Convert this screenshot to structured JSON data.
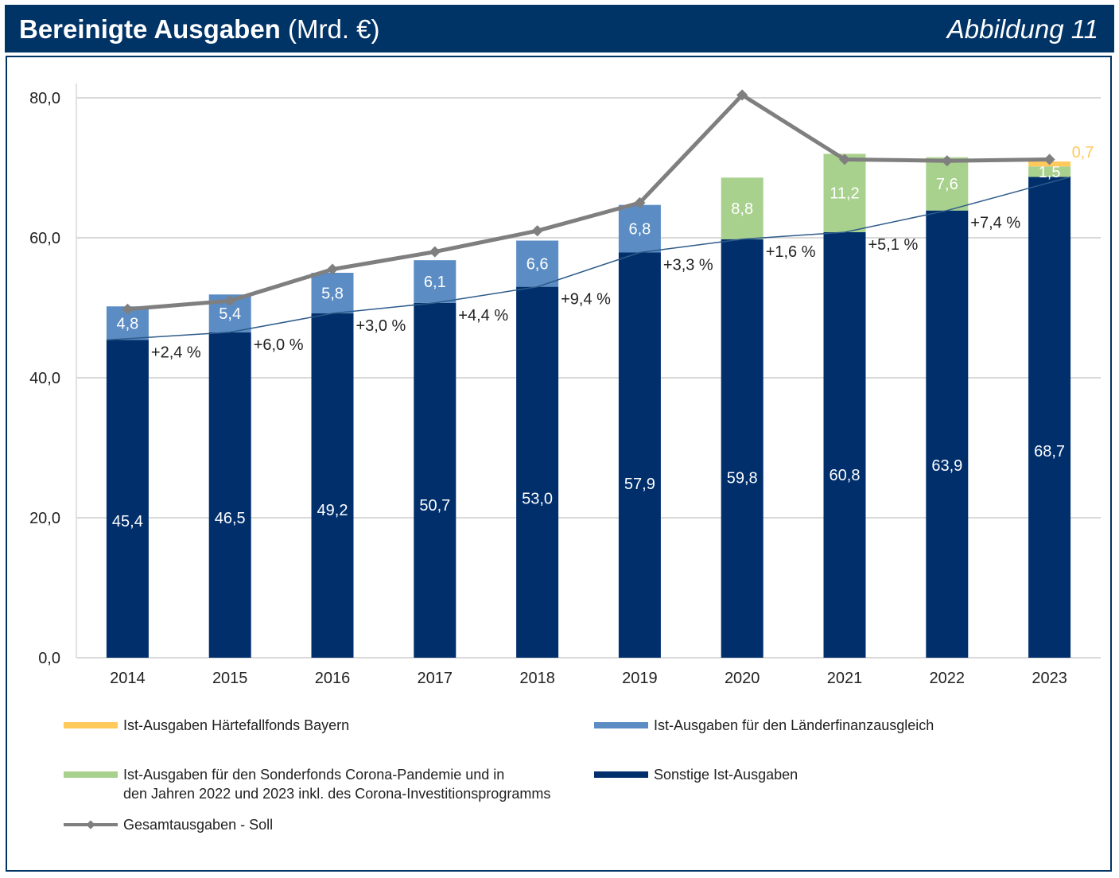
{
  "header": {
    "title_bold": "Bereinigte Ausgaben",
    "title_unit": "(Mrd. €)",
    "figure_label": "Abbildung 11"
  },
  "colors": {
    "header_bg": "#003366",
    "sonstige": "#002F6C",
    "laenderfinanz": "#5B8DC4",
    "corona": "#A9D18E",
    "haertefall": "#FFC95C",
    "soll_line": "#7F7F7F",
    "growth_line": "#2E5B8A",
    "grid": "#D9D9D9"
  },
  "chart_data": {
    "type": "bar",
    "stacked": true,
    "ylim": [
      0,
      80
    ],
    "yticks": [
      "0,0",
      "20,0",
      "40,0",
      "60,0",
      "80,0"
    ],
    "grid": true,
    "legend_position": "bottom",
    "categories": [
      "2014",
      "2015",
      "2016",
      "2017",
      "2018",
      "2019",
      "2020",
      "2021",
      "2022",
      "2023"
    ],
    "series": [
      {
        "key": "sonstige",
        "name": "Sonstige Ist-Ausgaben",
        "values": [
          45.4,
          46.5,
          49.2,
          50.7,
          53.0,
          57.9,
          59.8,
          60.8,
          63.9,
          68.7
        ],
        "labels": [
          "45,4",
          "46,5",
          "49,2",
          "50,7",
          "53,0",
          "57,9",
          "59,8",
          "60,8",
          "63,9",
          "68,7"
        ]
      },
      {
        "key": "laenderfinanz",
        "name": "Ist-Ausgaben für den Länderfinanzausgleich",
        "values": [
          4.8,
          5.4,
          5.8,
          6.1,
          6.6,
          6.8,
          null,
          null,
          null,
          null
        ],
        "labels": [
          "4,8",
          "5,4",
          "5,8",
          "6,1",
          "6,6",
          "6,8",
          null,
          null,
          null,
          null
        ]
      },
      {
        "key": "corona",
        "name": "Ist-Ausgaben für den Sonderfonds Corona-Pandemie und in den Jahren 2022 und 2023 inkl. des Corona-Investitionsprogramms",
        "values": [
          null,
          null,
          null,
          null,
          null,
          null,
          8.8,
          11.2,
          7.6,
          1.5
        ],
        "labels": [
          null,
          null,
          null,
          null,
          null,
          null,
          "8,8",
          "11,2",
          "7,6",
          "1,5"
        ]
      },
      {
        "key": "haertefall",
        "name": "Ist-Ausgaben Härtefallfonds Bayern",
        "values": [
          null,
          null,
          null,
          null,
          null,
          null,
          null,
          null,
          null,
          0.7
        ],
        "labels": [
          null,
          null,
          null,
          null,
          null,
          null,
          null,
          null,
          null,
          "0,7"
        ]
      }
    ],
    "soll_line": {
      "name": "Gesamtausgaben - Soll",
      "values": [
        49.8,
        51.0,
        55.5,
        58.0,
        61.0,
        65.0,
        80.4,
        71.2,
        71.0,
        71.2
      ]
    },
    "growth_labels": [
      "+2,4 %",
      "+6,0 %",
      "+3,0 %",
      "+4,4 %",
      "+9,4 %",
      "+3,3 %",
      "+1,6 %",
      "+5,1 %",
      "+7,4 %"
    ]
  },
  "legend": [
    {
      "key": "haertefall",
      "lines": [
        "Ist-Ausgaben Härtefallfonds Bayern"
      ]
    },
    {
      "key": "laenderfinanz",
      "lines": [
        "Ist-Ausgaben für den Länderfinanzausgleich"
      ]
    },
    {
      "key": "corona",
      "lines": [
        "Ist-Ausgaben für den Sonderfonds Corona-Pandemie und in",
        "den Jahren 2022 und 2023 inkl. des Corona-Investitionsprogramms"
      ]
    },
    {
      "key": "sonstige",
      "lines": [
        "Sonstige Ist-Ausgaben"
      ]
    },
    {
      "key": "soll",
      "lines": [
        "Gesamtausgaben - Soll"
      ]
    }
  ]
}
